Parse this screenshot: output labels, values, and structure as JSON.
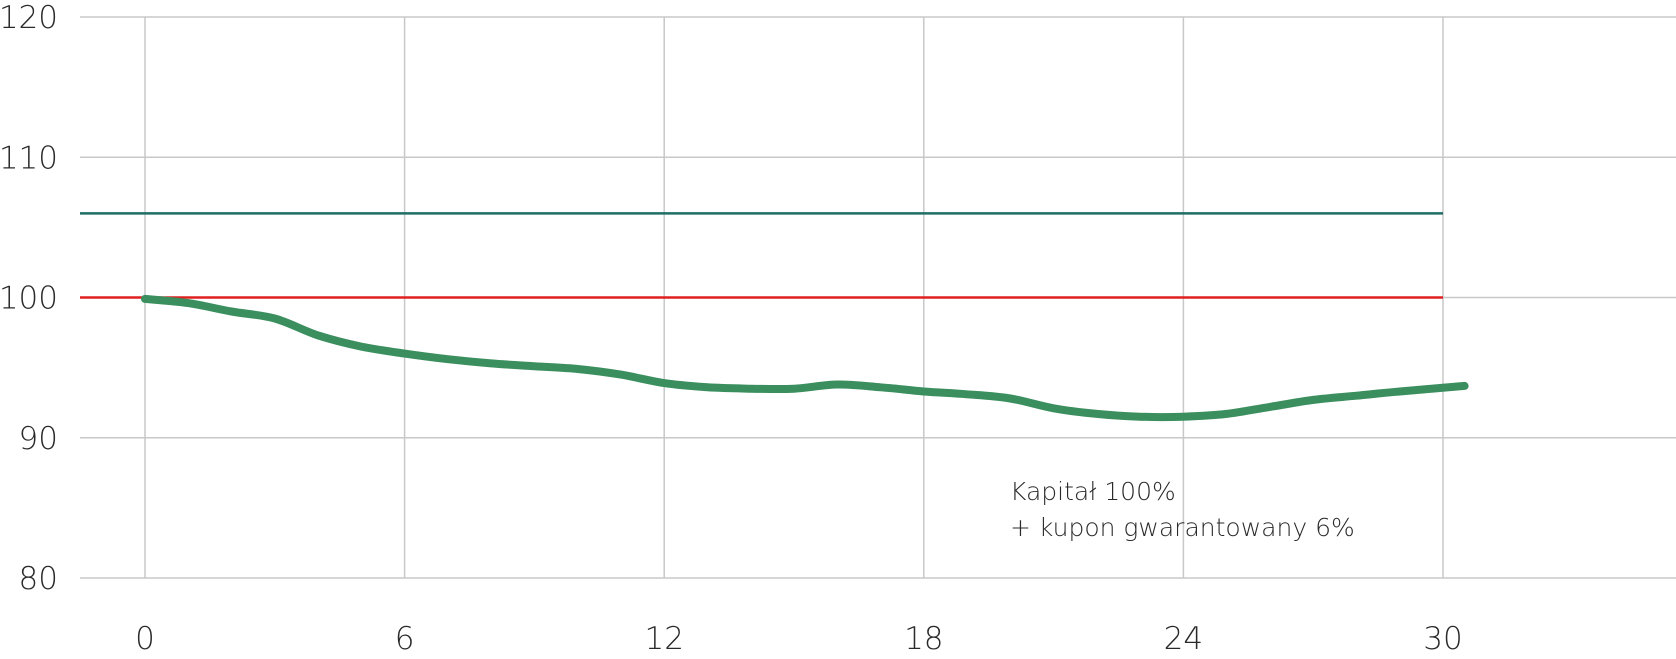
{
  "chart_data": {
    "type": "line",
    "x_ticks": [
      0,
      6,
      12,
      18,
      24,
      30
    ],
    "y_ticks": [
      80,
      90,
      100,
      110,
      120
    ],
    "xlim": [
      0,
      30
    ],
    "ylim": [
      80,
      120
    ],
    "grid": true,
    "series": [
      {
        "color": "#3b8f5e",
        "x": [
          0,
          1,
          2,
          3,
          4,
          5,
          6,
          7,
          8,
          9,
          10,
          11,
          12,
          13,
          14,
          15,
          16,
          17,
          18,
          19,
          20,
          21,
          22,
          23,
          24,
          25,
          26,
          27,
          28,
          29,
          30.5
        ],
        "y": [
          99.9,
          99.6,
          99.0,
          98.5,
          97.3,
          96.5,
          96.0,
          95.6,
          95.3,
          95.1,
          94.9,
          94.5,
          93.9,
          93.6,
          93.5,
          93.5,
          93.8,
          93.6,
          93.3,
          93.1,
          92.8,
          92.1,
          91.7,
          91.5,
          91.5,
          91.7,
          92.2,
          92.7,
          93.0,
          93.3,
          93.7
        ]
      }
    ],
    "reference_lines": [
      {
        "y": 106,
        "color": "#1f6e66"
      },
      {
        "y": 100,
        "color": "#e02020"
      }
    ],
    "annotation": {
      "line1": "Kapitał 100%",
      "line2": "+ kupon gwarantowany 6%"
    }
  }
}
